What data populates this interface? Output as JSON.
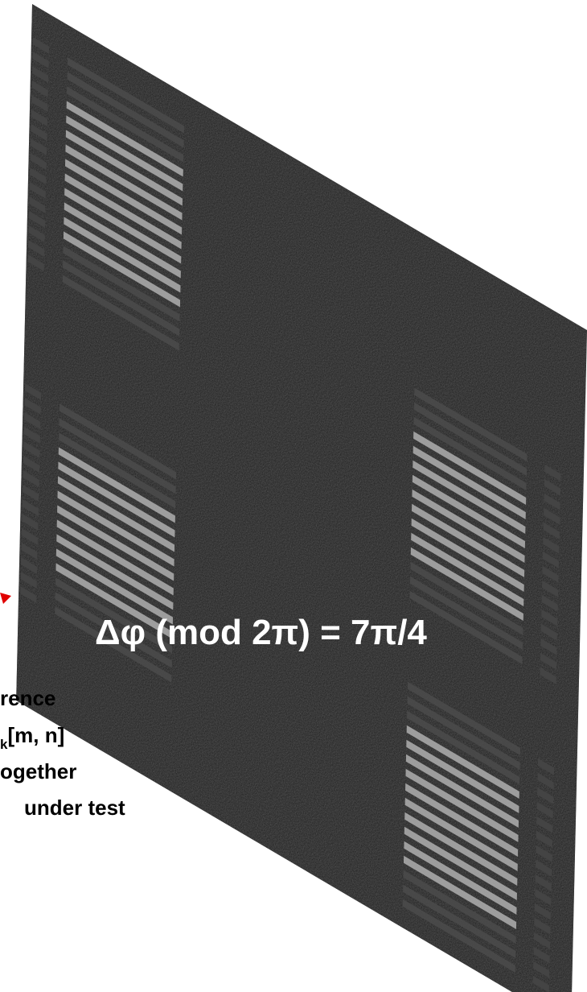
{
  "figure": {
    "annotation": "Δφ (mod 2π) = 7π/4",
    "caption": {
      "lines": [
        {
          "text": "rence"
        },
        {
          "sub": "k",
          "text": "[m, n]"
        },
        {
          "text": "ogether"
        },
        {
          "text": "under test"
        }
      ]
    }
  }
}
